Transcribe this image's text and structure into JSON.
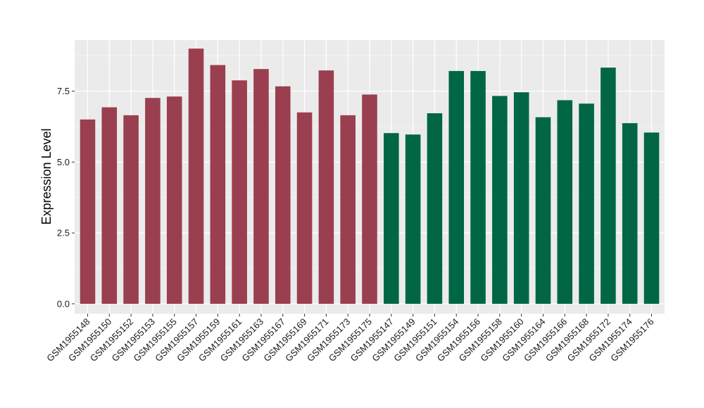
{
  "chart_data": {
    "type": "bar",
    "title": "",
    "xlabel": "",
    "ylabel": "Expression Level",
    "ylim": [
      -0.35,
      9.3
    ],
    "yticks": [
      0.0,
      2.5,
      5.0,
      7.5
    ],
    "ytick_labels": [
      "0.0",
      "2.5",
      "5.0",
      "7.5"
    ],
    "grid": true,
    "legend": "none",
    "colors": {
      "panel_background": "#EBEBEB",
      "grid_major": "#FFFFFF",
      "group_1": "#9A3F4F",
      "group_2": "#006645"
    },
    "categories": [
      "GSM1955148",
      "GSM1955150",
      "GSM1955152",
      "GSM1955153",
      "GSM1955155",
      "GSM1955157",
      "GSM1955159",
      "GSM1955161",
      "GSM1955163",
      "GSM1955167",
      "GSM1955169",
      "GSM1955171",
      "GSM1955173",
      "GSM1955175",
      "GSM1955147",
      "GSM1955149",
      "GSM1955151",
      "GSM1955154",
      "GSM1955156",
      "GSM1955158",
      "GSM1955160",
      "GSM1955164",
      "GSM1955166",
      "GSM1955168",
      "GSM1955172",
      "GSM1955174",
      "GSM1955176"
    ],
    "values": [
      6.5,
      6.93,
      6.65,
      7.26,
      7.31,
      9.0,
      8.42,
      7.88,
      8.28,
      7.67,
      6.75,
      8.23,
      6.65,
      7.38,
      6.02,
      5.97,
      6.72,
      8.21,
      8.21,
      7.33,
      7.46,
      6.58,
      7.18,
      7.06,
      8.33,
      6.37,
      6.04
    ],
    "groups": [
      1,
      1,
      1,
      1,
      1,
      1,
      1,
      1,
      1,
      1,
      1,
      1,
      1,
      1,
      2,
      2,
      2,
      2,
      2,
      2,
      2,
      2,
      2,
      2,
      2,
      2,
      2
    ]
  }
}
